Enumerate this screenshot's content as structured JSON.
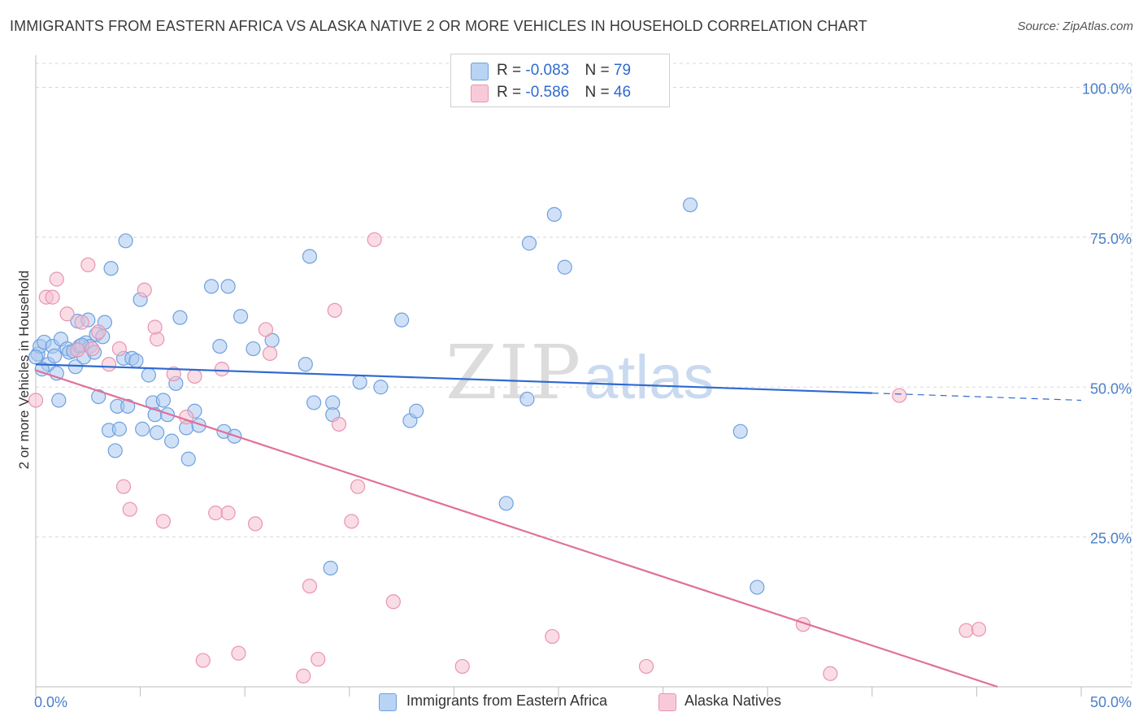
{
  "title": "IMMIGRANTS FROM EASTERN AFRICA VS ALASKA NATIVE 2 OR MORE VEHICLES IN HOUSEHOLD CORRELATION CHART",
  "source": "Source: ZipAtlas.com",
  "watermark": {
    "zip": "ZIP",
    "atlas": "atlas"
  },
  "colors": {
    "blue_fill": "#a9c8f0",
    "blue_stroke": "#6fa0de",
    "blue_line": "#2f6ad0",
    "pink_fill": "#f6bfd0",
    "pink_stroke": "#e894b0",
    "pink_line": "#e0709a",
    "grid": "#d8d8d8",
    "tick_text": "#4a7fc9"
  },
  "legend": {
    "rows": [
      {
        "r_label": "R = ",
        "r_value": "-0.083",
        "n_label": "N = ",
        "n_value": "79"
      },
      {
        "r_label": "R = ",
        "r_value": "-0.586",
        "n_label": "N = ",
        "n_value": "46"
      }
    ]
  },
  "bottom_legend": {
    "series1": "Immigrants from Eastern Africa",
    "series2": "Alaska Natives"
  },
  "chart_data": {
    "type": "scatter",
    "xlabel": "",
    "ylabel": "2 or more Vehicles in Household",
    "xlim": [
      0,
      50
    ],
    "ylim": [
      0,
      104
    ],
    "x_tick_labels": [
      "0.0%",
      "50.0%"
    ],
    "y_tick_labels": [
      "100.0%",
      "75.0%",
      "50.0%",
      "25.0%"
    ],
    "y_ticks": [
      100,
      75,
      50,
      25
    ],
    "grid": true,
    "series": [
      {
        "name": "Immigrants from Eastern Africa",
        "r": -0.083,
        "n": 79,
        "trend": {
          "x0": 0,
          "y0": 53.8,
          "x1": 40.0,
          "y1": 49.0,
          "dash_x1": 50,
          "dash_y1": 47.8
        },
        "points": [
          [
            0.1,
            55.5
          ],
          [
            0.2,
            56.8
          ],
          [
            0.4,
            57.5
          ],
          [
            0.6,
            53.8
          ],
          [
            0.8,
            56.8
          ],
          [
            0.9,
            55.2
          ],
          [
            1.0,
            52.3
          ],
          [
            1.2,
            58.0
          ],
          [
            1.5,
            56.4
          ],
          [
            1.6,
            55.8
          ],
          [
            1.8,
            56.0
          ],
          [
            1.9,
            53.4
          ],
          [
            2.0,
            61.0
          ],
          [
            2.1,
            56.8
          ],
          [
            2.3,
            55.0
          ],
          [
            2.4,
            57.4
          ],
          [
            2.5,
            61.2
          ],
          [
            2.6,
            56.8
          ],
          [
            2.8,
            55.8
          ],
          [
            2.9,
            58.8
          ],
          [
            3.0,
            48.4
          ],
          [
            3.2,
            58.4
          ],
          [
            3.3,
            60.8
          ],
          [
            3.5,
            42.8
          ],
          [
            3.6,
            69.8
          ],
          [
            3.8,
            39.4
          ],
          [
            3.9,
            46.8
          ],
          [
            4.0,
            43.0
          ],
          [
            4.2,
            54.8
          ],
          [
            4.3,
            74.4
          ],
          [
            4.4,
            46.8
          ],
          [
            4.6,
            54.8
          ],
          [
            4.8,
            54.4
          ],
          [
            5.0,
            64.6
          ],
          [
            5.1,
            43.0
          ],
          [
            5.4,
            52.0
          ],
          [
            5.6,
            47.4
          ],
          [
            5.7,
            45.4
          ],
          [
            5.8,
            42.4
          ],
          [
            6.1,
            47.8
          ],
          [
            6.3,
            45.4
          ],
          [
            6.5,
            41.0
          ],
          [
            6.7,
            50.6
          ],
          [
            6.9,
            61.6
          ],
          [
            7.2,
            43.2
          ],
          [
            7.3,
            38.0
          ],
          [
            7.6,
            46.0
          ],
          [
            7.8,
            43.6
          ],
          [
            8.4,
            66.8
          ],
          [
            8.8,
            56.8
          ],
          [
            9.0,
            42.6
          ],
          [
            9.2,
            66.8
          ],
          [
            9.5,
            41.8
          ],
          [
            9.8,
            61.8
          ],
          [
            10.4,
            56.4
          ],
          [
            11.3,
            57.8
          ],
          [
            12.9,
            53.8
          ],
          [
            13.1,
            71.8
          ],
          [
            13.3,
            47.4
          ],
          [
            14.1,
            19.8
          ],
          [
            14.2,
            47.4
          ],
          [
            14.2,
            45.4
          ],
          [
            15.5,
            50.8
          ],
          [
            16.5,
            50.0
          ],
          [
            17.5,
            61.2
          ],
          [
            17.9,
            44.4
          ],
          [
            18.2,
            46.0
          ],
          [
            22.5,
            30.6
          ],
          [
            23.5,
            48.0
          ],
          [
            23.6,
            74.0
          ],
          [
            24.8,
            78.8
          ],
          [
            25.3,
            70.0
          ],
          [
            31.3,
            80.4
          ],
          [
            33.7,
            42.6
          ],
          [
            34.5,
            16.6
          ],
          [
            0.0,
            55.0
          ],
          [
            0.3,
            53.0
          ],
          [
            1.1,
            47.8
          ],
          [
            2.2,
            57.0
          ]
        ]
      },
      {
        "name": "Alaska Natives",
        "r": -0.586,
        "n": 46,
        "trend": {
          "x0": 0,
          "y0": 52.8,
          "x1": 46.0,
          "y1": 0
        },
        "points": [
          [
            0.0,
            47.8
          ],
          [
            0.5,
            65.0
          ],
          [
            0.8,
            65.0
          ],
          [
            1.0,
            68.0
          ],
          [
            1.5,
            62.2
          ],
          [
            2.0,
            56.2
          ],
          [
            2.2,
            60.8
          ],
          [
            2.5,
            70.4
          ],
          [
            2.7,
            56.4
          ],
          [
            3.0,
            59.2
          ],
          [
            3.5,
            53.8
          ],
          [
            4.0,
            56.4
          ],
          [
            4.2,
            33.4
          ],
          [
            4.5,
            29.6
          ],
          [
            5.2,
            66.2
          ],
          [
            5.8,
            58.0
          ],
          [
            6.1,
            27.6
          ],
          [
            6.6,
            52.2
          ],
          [
            7.2,
            45.0
          ],
          [
            7.6,
            51.8
          ],
          [
            8.0,
            4.4
          ],
          [
            8.6,
            29.0
          ],
          [
            8.9,
            53.0
          ],
          [
            9.2,
            29.0
          ],
          [
            9.7,
            5.6
          ],
          [
            10.5,
            27.2
          ],
          [
            11.0,
            59.6
          ],
          [
            11.2,
            55.6
          ],
          [
            12.8,
            1.8
          ],
          [
            13.1,
            16.8
          ],
          [
            13.5,
            4.6
          ],
          [
            14.3,
            62.8
          ],
          [
            14.5,
            43.8
          ],
          [
            15.1,
            27.6
          ],
          [
            15.4,
            33.4
          ],
          [
            16.2,
            74.6
          ],
          [
            17.1,
            14.2
          ],
          [
            20.4,
            3.4
          ],
          [
            24.7,
            8.4
          ],
          [
            29.2,
            3.4
          ],
          [
            36.7,
            10.4
          ],
          [
            38.0,
            2.2
          ],
          [
            41.3,
            48.6
          ],
          [
            44.5,
            9.4
          ],
          [
            45.1,
            9.6
          ],
          [
            5.7,
            60.0
          ]
        ]
      }
    ]
  }
}
